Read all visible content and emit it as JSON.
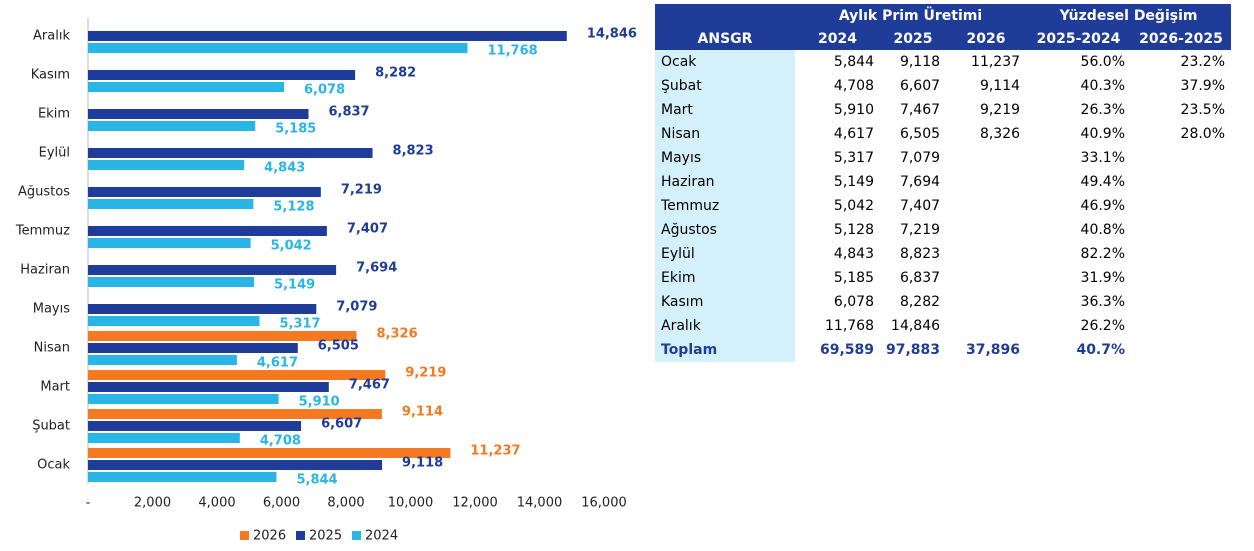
{
  "chart_data": {
    "type": "hbar",
    "categories": [
      "Ocak",
      "Şubat",
      "Mart",
      "Nisan",
      "Mayıs",
      "Haziran",
      "Temmuz",
      "Ağustos",
      "Eylül",
      "Ekim",
      "Kasım",
      "Aralık"
    ],
    "series": [
      {
        "name": "2026",
        "color": "#f47920",
        "values": [
          11237,
          9114,
          9219,
          8326,
          null,
          null,
          null,
          null,
          null,
          null,
          null,
          null
        ],
        "value_labels": [
          "11,237",
          "9,114",
          "9,219",
          "8,326",
          null,
          null,
          null,
          null,
          null,
          null,
          null,
          null
        ]
      },
      {
        "name": "2025",
        "color": "#1f3c99",
        "values": [
          9118,
          6607,
          7467,
          6505,
          7079,
          7694,
          7407,
          7219,
          8823,
          6837,
          8282,
          14846
        ],
        "value_labels": [
          "9,118",
          "6,607",
          "7,467",
          "6,505",
          "7,079",
          "7,694",
          "7,407",
          "7,219",
          "8,823",
          "6,837",
          "8,282",
          "14,846"
        ]
      },
      {
        "name": "2024",
        "color": "#29b6e6",
        "values": [
          5844,
          4708,
          5910,
          4617,
          5317,
          5149,
          5042,
          5128,
          4843,
          5185,
          6078,
          11768
        ],
        "value_labels": [
          "5,844",
          "4,708",
          "5,910",
          "4,617",
          "5,317",
          "5,149",
          "5,042",
          "5,128",
          "4,843",
          "5,185",
          "6,078",
          "11,768"
        ]
      }
    ],
    "xlim": [
      0,
      16000
    ],
    "xticks": [
      {
        "value": 0,
        "label": "-"
      },
      {
        "value": 2000,
        "label": "2,000"
      },
      {
        "value": 4000,
        "label": "4,000"
      },
      {
        "value": 6000,
        "label": "6,000"
      },
      {
        "value": 8000,
        "label": "8,000"
      },
      {
        "value": 10000,
        "label": "10,000"
      },
      {
        "value": 12000,
        "label": "12,000"
      },
      {
        "value": 14000,
        "label": "14,000"
      },
      {
        "value": 16000,
        "label": "16,000"
      }
    ],
    "legend": "bottom"
  },
  "table": {
    "groups": [
      "Aylık Prim Üretimi",
      "Yüzdesel Değişim"
    ],
    "columns": [
      "ANSGR",
      "2024",
      "2025",
      "2026",
      "2025-2024",
      "2026-2025"
    ],
    "rows": [
      [
        "Ocak",
        "5,844",
        "9,118",
        "11,237",
        "56.0%",
        "23.2%"
      ],
      [
        "Şubat",
        "4,708",
        "6,607",
        "9,114",
        "40.3%",
        "37.9%"
      ],
      [
        "Mart",
        "5,910",
        "7,467",
        "9,219",
        "26.3%",
        "23.5%"
      ],
      [
        "Nisan",
        "4,617",
        "6,505",
        "8,326",
        "40.9%",
        "28.0%"
      ],
      [
        "Mayıs",
        "5,317",
        "7,079",
        null,
        "33.1%",
        null
      ],
      [
        "Haziran",
        "5,149",
        "7,694",
        null,
        "49.4%",
        null
      ],
      [
        "Temmuz",
        "5,042",
        "7,407",
        null,
        "46.9%",
        null
      ],
      [
        "Ağustos",
        "5,128",
        "7,219",
        null,
        "40.8%",
        null
      ],
      [
        "Eylül",
        "4,843",
        "8,823",
        null,
        "82.2%",
        null
      ],
      [
        "Ekim",
        "5,185",
        "6,837",
        null,
        "31.9%",
        null
      ],
      [
        "Kasım",
        "6,078",
        "8,282",
        null,
        "36.3%",
        null
      ],
      [
        "Aralık",
        "11,768",
        "14,846",
        null,
        "26.2%",
        null
      ]
    ],
    "total": [
      "Toplam",
      "69,589",
      "97,883",
      "37,896",
      "40.7%",
      null
    ]
  }
}
